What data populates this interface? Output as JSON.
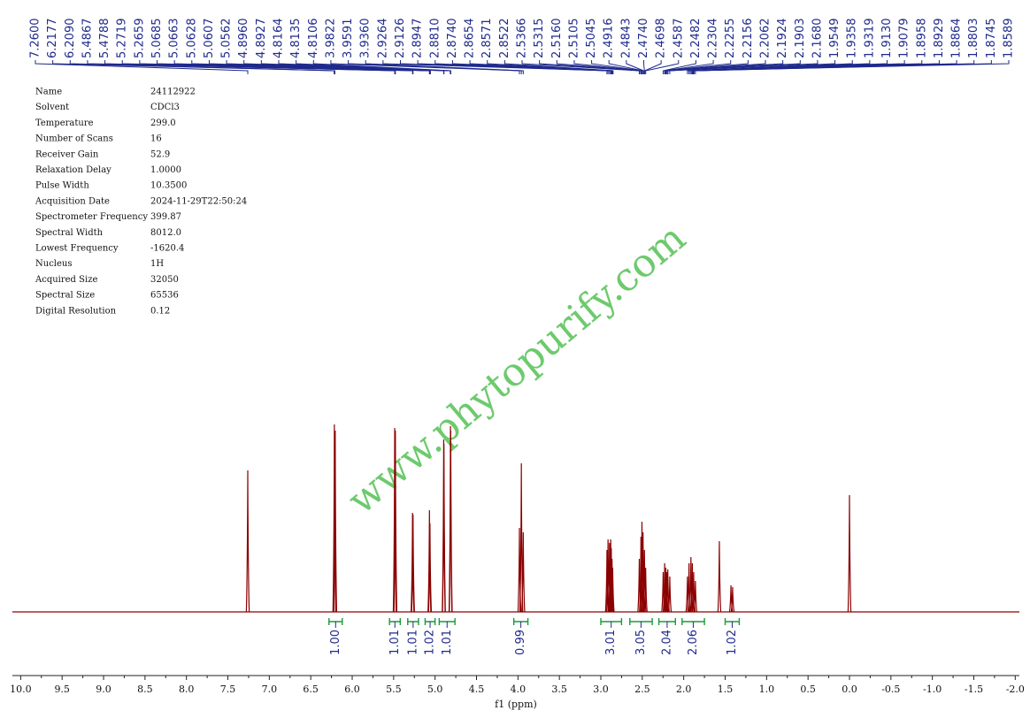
{
  "chart_data": {
    "type": "nmr",
    "parameters": [
      [
        "Name",
        "24112922"
      ],
      [
        "Solvent",
        "CDCl3"
      ],
      [
        "Temperature",
        "299.0"
      ],
      [
        "Number of Scans",
        "16"
      ],
      [
        "Receiver Gain",
        "52.9"
      ],
      [
        "Relaxation Delay",
        "1.0000"
      ],
      [
        "Pulse Width",
        "10.3500"
      ],
      [
        "Acquisition Date",
        "2024-11-29T22:50:24"
      ],
      [
        "Spectrometer Frequency",
        "399.87"
      ],
      [
        "Spectral Width",
        "8012.0"
      ],
      [
        "Lowest Frequency",
        "-1620.4"
      ],
      [
        "Nucleus",
        "1H"
      ],
      [
        "Acquired Size",
        "32050"
      ],
      [
        "Spectral Size",
        "65536"
      ],
      [
        "Digital Resolution",
        "0.12"
      ]
    ],
    "peaks": {
      "values": [
        7.26,
        6.2177,
        6.209,
        5.4867,
        5.4788,
        5.2719,
        5.2659,
        5.0685,
        5.0663,
        5.0628,
        5.0607,
        5.0562,
        4.896,
        4.8927,
        4.8164,
        4.8135,
        4.8106,
        3.9822,
        3.9591,
        3.936,
        2.9264,
        2.9126,
        2.8947,
        2.881,
        2.874,
        2.8654,
        2.8571,
        2.8522,
        2.5366,
        2.5315,
        2.516,
        2.5105,
        2.5045,
        2.4916,
        2.4843,
        2.474,
        2.4698,
        2.4587,
        2.2482,
        2.2304,
        2.2255,
        2.2156,
        2.2062,
        2.1924,
        2.1903,
        2.168,
        1.9549,
        1.9358,
        1.9319,
        1.913,
        1.9079,
        1.8958,
        1.8929,
        1.8864,
        1.8803,
        1.8745,
        1.8589
      ],
      "value_labels": [
        "7.2600",
        "6.2177",
        "6.2090",
        "5.4867",
        "5.4788",
        "5.2719",
        "5.2659",
        "5.0685",
        "5.0663",
        "5.0628",
        "5.0607",
        "5.0562",
        "4.8960",
        "4.8927",
        "4.8164",
        "4.8135",
        "4.8106",
        "3.9822",
        "3.9591",
        "3.9360",
        "2.9264",
        "2.9126",
        "2.8947",
        "2.8810",
        "2.8740",
        "2.8654",
        "2.8571",
        "2.8522",
        "2.5366",
        "2.5315",
        "2.5160",
        "2.5105",
        "2.5045",
        "2.4916",
        "2.4843",
        "2.4740",
        "2.4698",
        "2.4587",
        "2.2482",
        "2.2304",
        "2.2255",
        "2.2156",
        "2.2062",
        "2.1924",
        "2.1903",
        "2.1680",
        "1.9549",
        "1.9358",
        "1.9319",
        "1.9130",
        "1.9079",
        "1.8958",
        "1.8929",
        "1.8864",
        "1.8803",
        "1.8745",
        "1.8589"
      ]
    },
    "signals": {
      "x": [
        7.26,
        6.215,
        6.205,
        5.487,
        5.479,
        5.272,
        5.266,
        5.068,
        5.062,
        4.896,
        4.893,
        4.814,
        4.811,
        3.982,
        3.959,
        3.936,
        2.926,
        2.913,
        2.895,
        2.881,
        2.874,
        2.865,
        2.857,
        2.536,
        2.516,
        2.504,
        2.491,
        2.474,
        2.459,
        2.248,
        2.23,
        2.216,
        2.206,
        2.192,
        2.168,
        1.955,
        1.936,
        1.913,
        1.896,
        1.88,
        1.859,
        1.57,
        1.43,
        1.41,
        0.0
      ],
      "values": [
        160,
        212,
        205,
        208,
        205,
        112,
        110,
        115,
        100,
        195,
        190,
        210,
        205,
        95,
        168,
        90,
        70,
        82,
        78,
        82,
        72,
        60,
        50,
        60,
        85,
        102,
        90,
        70,
        50,
        45,
        55,
        50,
        45,
        48,
        40,
        40,
        55,
        62,
        55,
        45,
        35,
        80,
        30,
        28,
        132
      ]
    },
    "integrals": {
      "ranges": [
        [
          6.28,
          6.12
        ],
        [
          5.55,
          5.42
        ],
        [
          5.33,
          5.2
        ],
        [
          5.12,
          5.0
        ],
        [
          4.95,
          4.76
        ],
        [
          4.05,
          3.88
        ],
        [
          3.0,
          2.75
        ],
        [
          2.65,
          2.38
        ],
        [
          2.3,
          2.1
        ],
        [
          2.02,
          1.75
        ],
        [
          1.5,
          1.33
        ]
      ],
      "values": [
        1.0,
        1.01,
        1.01,
        1.02,
        1.01,
        0.99,
        3.01,
        3.05,
        2.04,
        2.06,
        1.02
      ],
      "value_labels": [
        "1.00",
        "1.01",
        "1.01",
        "1.02",
        "1.01",
        "0.99",
        "3.01",
        "3.05",
        "2.04",
        "2.06",
        "1.02"
      ]
    },
    "xlim": [
      10.1,
      -2.05
    ],
    "xticks": [
      {
        "value": 10,
        "label": "10.0"
      },
      {
        "value": 9.5,
        "label": "9.5"
      },
      {
        "value": 9,
        "label": "9.0"
      },
      {
        "value": 8.5,
        "label": "8.5"
      },
      {
        "value": 8,
        "label": "8.0"
      },
      {
        "value": 7.5,
        "label": "7.5"
      },
      {
        "value": 7,
        "label": "7.0"
      },
      {
        "value": 6.5,
        "label": "6.5"
      },
      {
        "value": 6,
        "label": "6.0"
      },
      {
        "value": 5.5,
        "label": "5.5"
      },
      {
        "value": 5,
        "label": "5.0"
      },
      {
        "value": 4.5,
        "label": "4.5"
      },
      {
        "value": 4,
        "label": "4.0"
      },
      {
        "value": 3.5,
        "label": "3.5"
      },
      {
        "value": 3,
        "label": "3.0"
      },
      {
        "value": 2.5,
        "label": "2.5"
      },
      {
        "value": 2,
        "label": "2.0"
      },
      {
        "value": 1.5,
        "label": "1.5"
      },
      {
        "value": 1,
        "label": "1.0"
      },
      {
        "value": 0.5,
        "label": "0.5"
      },
      {
        "value": 0,
        "label": "0.0"
      },
      {
        "value": -0.5,
        "label": "-0.5"
      },
      {
        "value": -1,
        "label": "-1.0"
      },
      {
        "value": -1.5,
        "label": "-1.5"
      },
      {
        "value": -2,
        "label": "-2.0"
      }
    ],
    "xlabel": "f1 (ppm)",
    "watermark": "www.phytopurify.com",
    "color": "#8b0000",
    "peak_color": "#1f2a8c",
    "integral_color": "#1a9a3a"
  }
}
